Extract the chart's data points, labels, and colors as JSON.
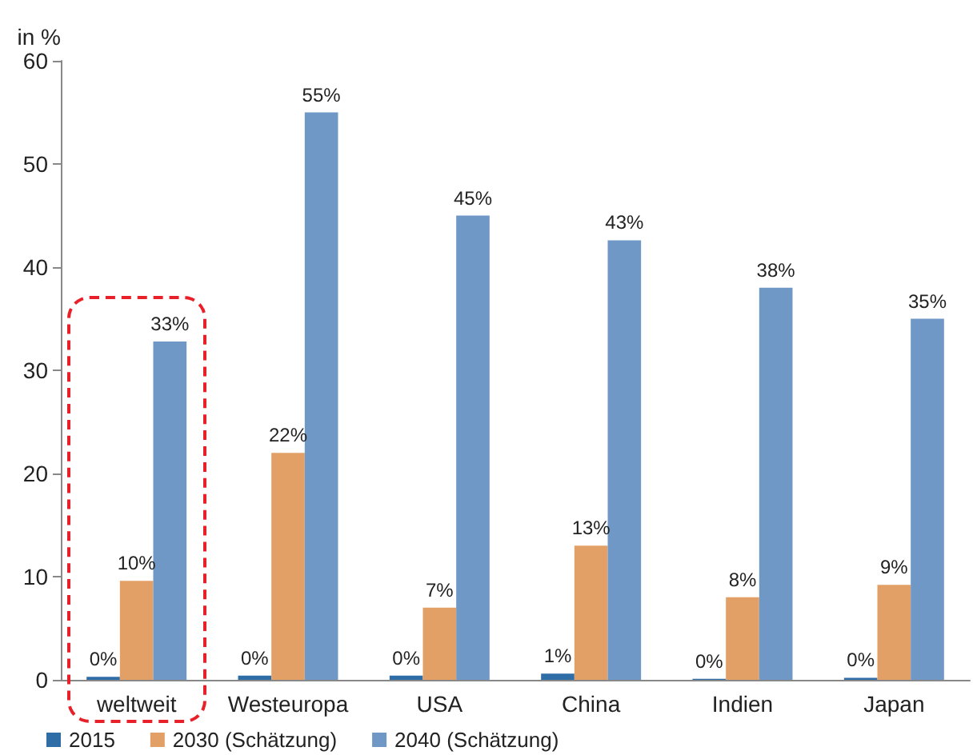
{
  "chart_data": {
    "type": "bar",
    "ylabel": "in %",
    "categories": [
      "weltweit",
      "Westeuropa",
      "USA",
      "China",
      "Indien",
      "Japan"
    ],
    "series": [
      {
        "name": "2015",
        "color": "#2f6da6",
        "values": [
          0.3,
          0.4,
          0.4,
          0.6,
          0.1,
          0.2
        ],
        "value_labels": [
          "0%",
          "0%",
          "0%",
          "1%",
          "0%",
          "0%"
        ]
      },
      {
        "name": "2030 (Schätzung)",
        "color": "#e3a066",
        "values": [
          9.6,
          22,
          7,
          13,
          8,
          9.2
        ],
        "value_labels": [
          "10%",
          "22%",
          "7%",
          "13%",
          "8%",
          "9%"
        ]
      },
      {
        "name": "2040 (Schätzung)",
        "color": "#7098c6",
        "values": [
          32.8,
          55,
          45,
          42.6,
          38,
          35
        ],
        "value_labels": [
          "33%",
          "55%",
          "45%",
          "43%",
          "38%",
          "35%"
        ]
      }
    ],
    "ylim": [
      0,
      60
    ],
    "yticks": [
      0,
      10,
      20,
      30,
      40,
      50,
      60
    ],
    "grid": false,
    "legend": "bottom left"
  }
}
